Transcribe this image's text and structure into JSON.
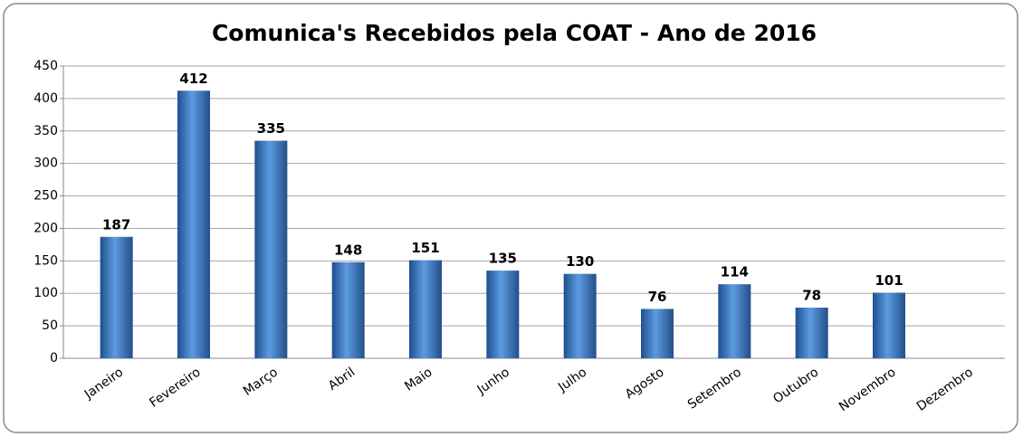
{
  "chart_data": {
    "type": "bar",
    "title": "Comunica's Recebidos pela COAT - Ano de 2016",
    "categories": [
      "Janeiro",
      "Fevereiro",
      "Março",
      "Abril",
      "Maio",
      "Junho",
      "Julho",
      "Agosto",
      "Setembro",
      "Outubro",
      "Novembro",
      "Dezembro"
    ],
    "values": [
      187,
      412,
      335,
      148,
      151,
      135,
      130,
      76,
      114,
      78,
      101,
      null
    ],
    "color": "#3a78c9",
    "ylim": [
      0,
      450
    ],
    "yticks": [
      0,
      50,
      100,
      150,
      200,
      250,
      300,
      350,
      400,
      450
    ],
    "grid": true
  }
}
